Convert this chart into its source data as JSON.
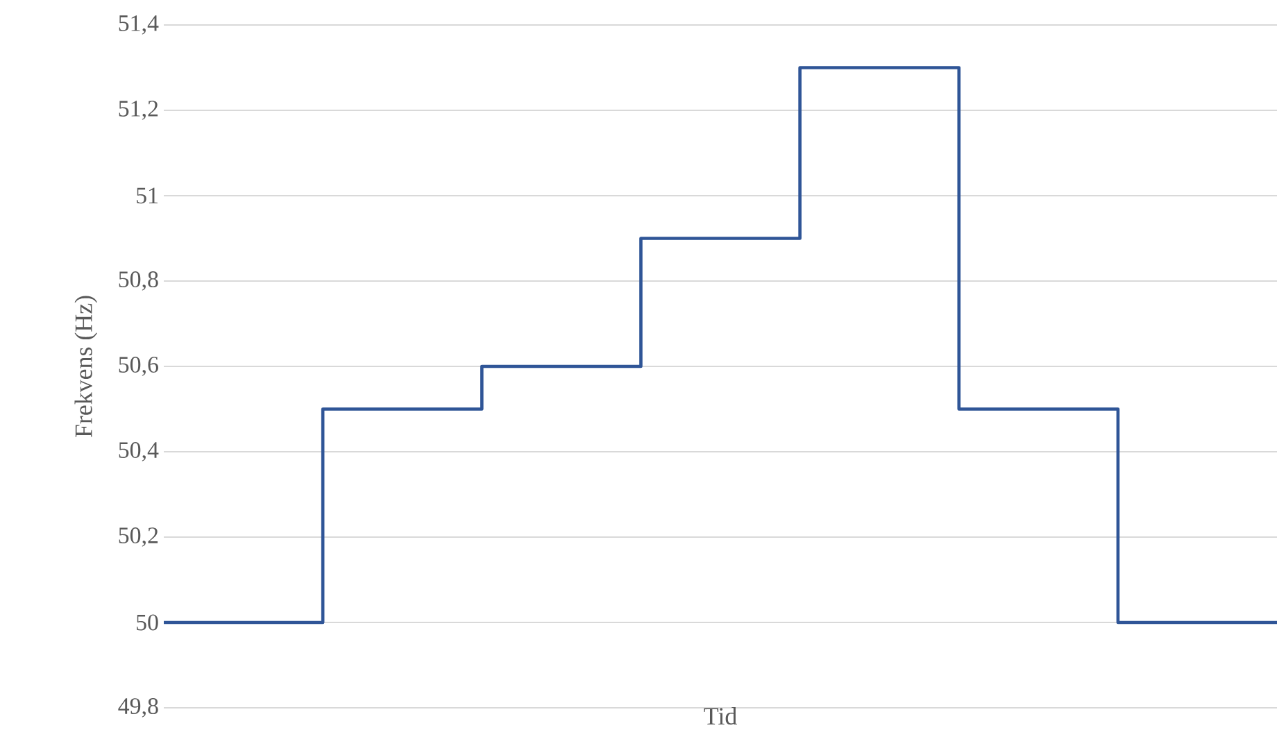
{
  "chart_data": {
    "type": "step",
    "xlabel": "Tid",
    "ylabel": "Frekvens (Hz)",
    "categories": [
      null,
      null,
      null,
      null,
      null,
      null,
      null,
      null
    ],
    "series": [
      {
        "color": "#2f5597",
        "values": [
          50,
          50.5,
          50.6,
          50.9,
          51.3,
          50.5,
          50,
          50
        ]
      }
    ],
    "ylim": [
      49.8,
      51.4
    ],
    "yticks": [
      {
        "value": 49.8,
        "label": "49,8"
      },
      {
        "value": 50,
        "label": "50"
      },
      {
        "value": 50.2,
        "label": "50,2"
      },
      {
        "value": 50.4,
        "label": "50,4"
      },
      {
        "value": 50.6,
        "label": "50,6"
      },
      {
        "value": 50.8,
        "label": "50,8"
      },
      {
        "value": 51,
        "label": "51"
      },
      {
        "value": 51.2,
        "label": "51,2"
      },
      {
        "value": 51.4,
        "label": "51,4"
      }
    ],
    "grid": "y",
    "marker": "none",
    "line_style": "solid"
  }
}
